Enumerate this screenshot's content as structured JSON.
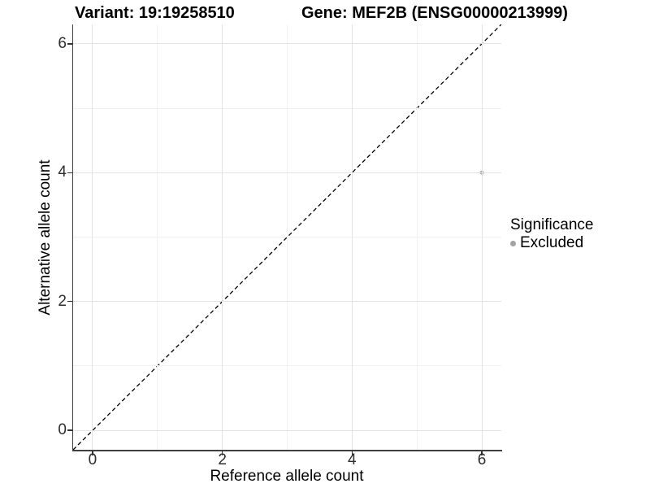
{
  "chart_data": {
    "type": "scatter",
    "titles": {
      "left": "Variant: 19:19258510",
      "right": "Gene: MEF2B (ENSG00000213999)"
    },
    "xlabel": "Reference allele count",
    "ylabel": "Alternative allele count",
    "xlim": [
      -0.3,
      6.3
    ],
    "ylim": [
      -0.3,
      6.3
    ],
    "x_ticks": [
      0,
      2,
      4,
      6
    ],
    "y_ticks": [
      0,
      2,
      4,
      6
    ],
    "x_minor": [
      1,
      3,
      5
    ],
    "y_minor": [
      1,
      3,
      5
    ],
    "grid": true,
    "series": [
      {
        "name": "Excluded",
        "color": "#aaaaaa",
        "points": [
          {
            "x": 6,
            "y": 4
          }
        ]
      }
    ],
    "identity_line": {
      "style": "dashed",
      "color": "#000000",
      "from": [
        -0.3,
        -0.3
      ],
      "to": [
        6.3,
        6.3
      ]
    },
    "legend": {
      "title": "Significance",
      "position": "right",
      "items": [
        {
          "label": "Excluded",
          "color": "#a3a3a3",
          "marker": "circle"
        }
      ]
    }
  },
  "colors": {
    "background": "#ffffff",
    "grid_major": "#e4e4e4",
    "grid_minor": "#f1f1f1",
    "axis_line": "#404040",
    "tick": "#333333",
    "tick_label": "#2e2e2e",
    "text": "#000000"
  }
}
